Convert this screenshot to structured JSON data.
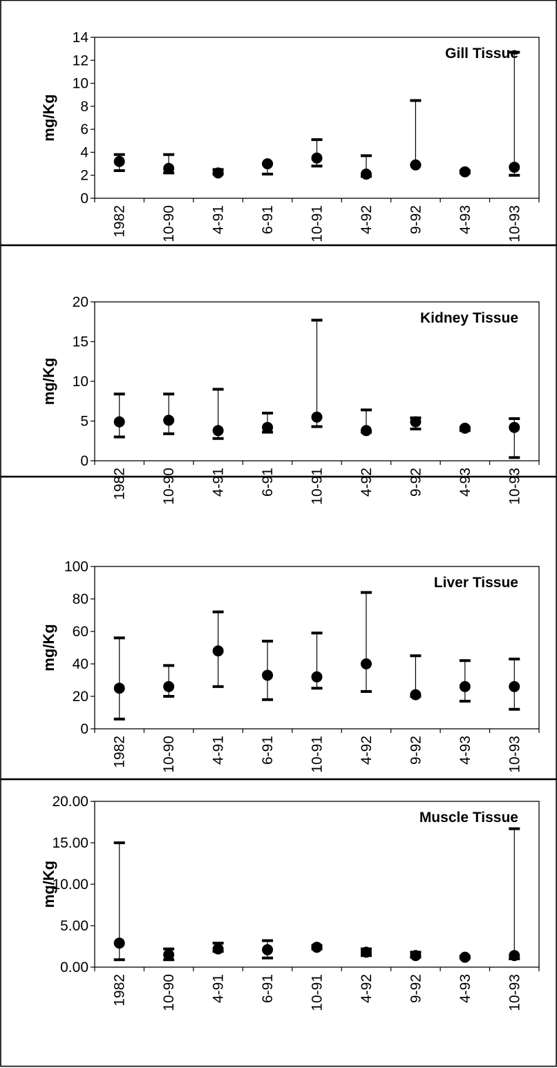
{
  "chart_data": [
    {
      "type": "scatter",
      "title": "Gill Tissue",
      "ylabel": "mg/Kg",
      "categories": [
        "1982",
        "10-90",
        "4-91",
        "6-91",
        "10-91",
        "4-92",
        "9-92",
        "4-93",
        "10-93"
      ],
      "yticks": [
        "0",
        "2",
        "4",
        "6",
        "8",
        "10",
        "12",
        "14"
      ],
      "ylim": [
        0,
        14
      ],
      "series": [
        {
          "values": [
            3.2,
            2.6,
            2.2,
            3.0,
            3.5,
            2.1,
            2.9,
            2.3,
            2.7
          ],
          "upper": [
            3.8,
            3.8,
            2.5,
            3.0,
            5.1,
            3.7,
            8.5,
            2.4,
            12.7
          ],
          "lower": [
            2.4,
            2.2,
            2.1,
            2.1,
            2.8,
            1.9,
            2.9,
            2.2,
            2.0
          ]
        }
      ]
    },
    {
      "type": "scatter",
      "title": "Kidney Tissue",
      "ylabel": "mg/Kg",
      "categories": [
        "1982",
        "10-90",
        "4-91",
        "6-91",
        "10-91",
        "4-92",
        "9-92",
        "4-93",
        "10-93"
      ],
      "yticks": [
        "0",
        "5",
        "10",
        "15",
        "20"
      ],
      "ylim": [
        0,
        20
      ],
      "series": [
        {
          "values": [
            4.9,
            5.1,
            3.8,
            4.2,
            5.5,
            3.8,
            4.9,
            4.1,
            4.2
          ],
          "upper": [
            8.4,
            8.4,
            9.0,
            6.0,
            17.7,
            6.4,
            5.4,
            4.2,
            5.3
          ],
          "lower": [
            3.0,
            3.4,
            2.8,
            3.6,
            4.3,
            3.6,
            4.0,
            3.8,
            0.4
          ]
        }
      ]
    },
    {
      "type": "scatter",
      "title": "Liver Tissue",
      "ylabel": "mg/Kg",
      "categories": [
        "1982",
        "10-90",
        "4-91",
        "6-91",
        "10-91",
        "4-92",
        "9-92",
        "4-93",
        "10-93"
      ],
      "yticks": [
        "0",
        "20",
        "40",
        "60",
        "80",
        "100"
      ],
      "ylim": [
        0,
        100
      ],
      "series": [
        {
          "values": [
            25,
            26,
            48,
            33,
            32,
            40,
            21,
            26,
            26
          ],
          "upper": [
            56,
            39,
            72,
            54,
            59,
            84,
            45,
            42,
            43
          ],
          "lower": [
            6,
            20,
            26,
            18,
            25,
            23,
            20,
            17,
            12
          ]
        }
      ]
    },
    {
      "type": "scatter",
      "title": "Muscle Tissue",
      "ylabel": "mg/Kg",
      "categories": [
        "1982",
        "10-90",
        "4-91",
        "6-91",
        "10-91",
        "4-92",
        "9-92",
        "4-93",
        "10-93"
      ],
      "yticks": [
        "0.00",
        "5.00",
        "10.00",
        "15.00",
        "20.00"
      ],
      "ylim": [
        0,
        20
      ],
      "series": [
        {
          "values": [
            2.9,
            1.5,
            2.2,
            2.1,
            2.4,
            1.8,
            1.4,
            1.2,
            1.4
          ],
          "upper": [
            15.0,
            2.2,
            2.9,
            3.2,
            2.6,
            2.2,
            1.8,
            1.3,
            16.7
          ],
          "lower": [
            0.9,
            0.9,
            1.9,
            1.1,
            2.2,
            1.4,
            1.2,
            1.1,
            1.0
          ]
        }
      ]
    }
  ]
}
